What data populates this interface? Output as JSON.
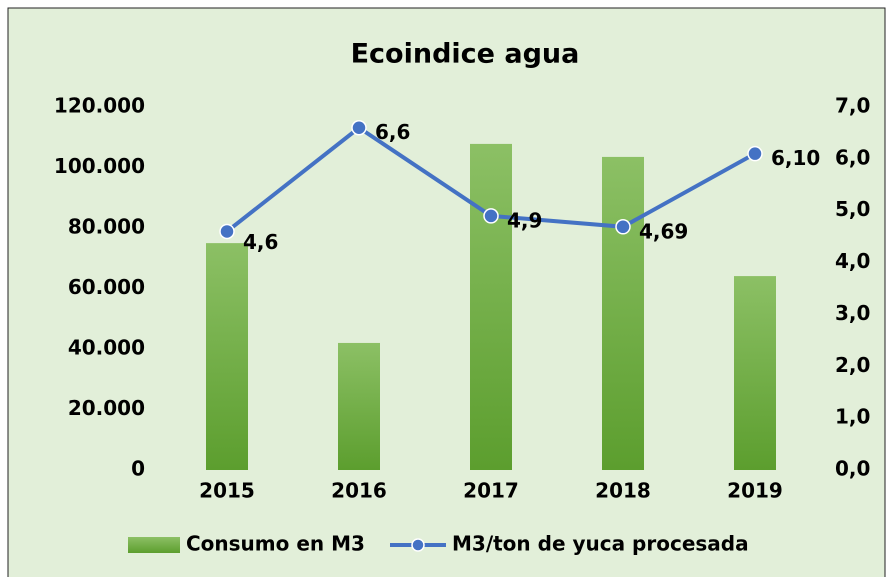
{
  "chart_data": {
    "type": "bar",
    "title": "Ecoindice agua",
    "categories": [
      "2015",
      "2016",
      "2017",
      "2018",
      "2019"
    ],
    "series": [
      {
        "name": "Consumo en M3",
        "color": "#6aaa3c",
        "values": [
          75000,
          42000,
          107800,
          103500,
          64100
        ]
      },
      {
        "name": "M3/ton de yuca procesada",
        "color": "#4472c4",
        "axis": "y2",
        "type": "line",
        "values": [
          4.6,
          6.6,
          4.9,
          4.69,
          6.1
        ],
        "value_labels": [
          "4,6",
          "6,6",
          "4,9",
          "4,69",
          "6,10"
        ]
      }
    ],
    "ylim": [
      0,
      120000
    ],
    "yticks": [
      {
        "value": 0,
        "label": "0"
      },
      {
        "value": 20000,
        "label": "20.000"
      },
      {
        "value": 40000,
        "label": "40.000"
      },
      {
        "value": 60000,
        "label": "60.000"
      },
      {
        "value": 80000,
        "label": "80.000"
      },
      {
        "value": 100000,
        "label": "100.000"
      },
      {
        "value": 120000,
        "label": "120.000"
      }
    ],
    "y2lim": [
      0,
      7
    ],
    "y2ticks": [
      {
        "value": 0,
        "label": "0,0"
      },
      {
        "value": 1,
        "label": "1,0"
      },
      {
        "value": 2,
        "label": "2,0"
      },
      {
        "value": 3,
        "label": "3,0"
      },
      {
        "value": 4,
        "label": "4,0"
      },
      {
        "value": 5,
        "label": "5,0"
      },
      {
        "value": 6,
        "label": "6,0"
      },
      {
        "value": 7,
        "label": "7,0"
      }
    ],
    "grid": false,
    "legend": "bottom"
  }
}
